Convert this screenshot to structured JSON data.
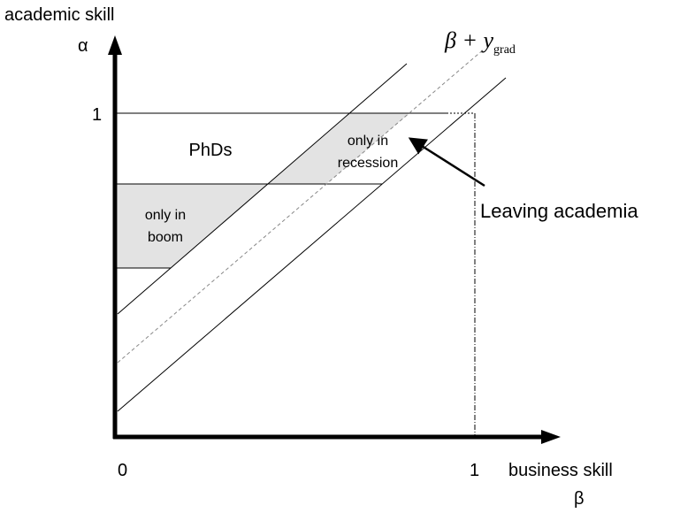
{
  "axes": {
    "y_label": "academic skill",
    "y_symbol": "α",
    "y_max_label": "1",
    "origin_label": "0",
    "x_max_label": "1",
    "x_label": "business skill",
    "x_symbol": "β"
  },
  "regions": {
    "phds": "PhDs",
    "boom": [
      "only in",
      "boom"
    ],
    "recession": [
      "only in",
      "recession"
    ]
  },
  "annotations": {
    "leaving": "Leaving academia",
    "threshold": {
      "base": "β + y",
      "subscript": "grad"
    }
  }
}
